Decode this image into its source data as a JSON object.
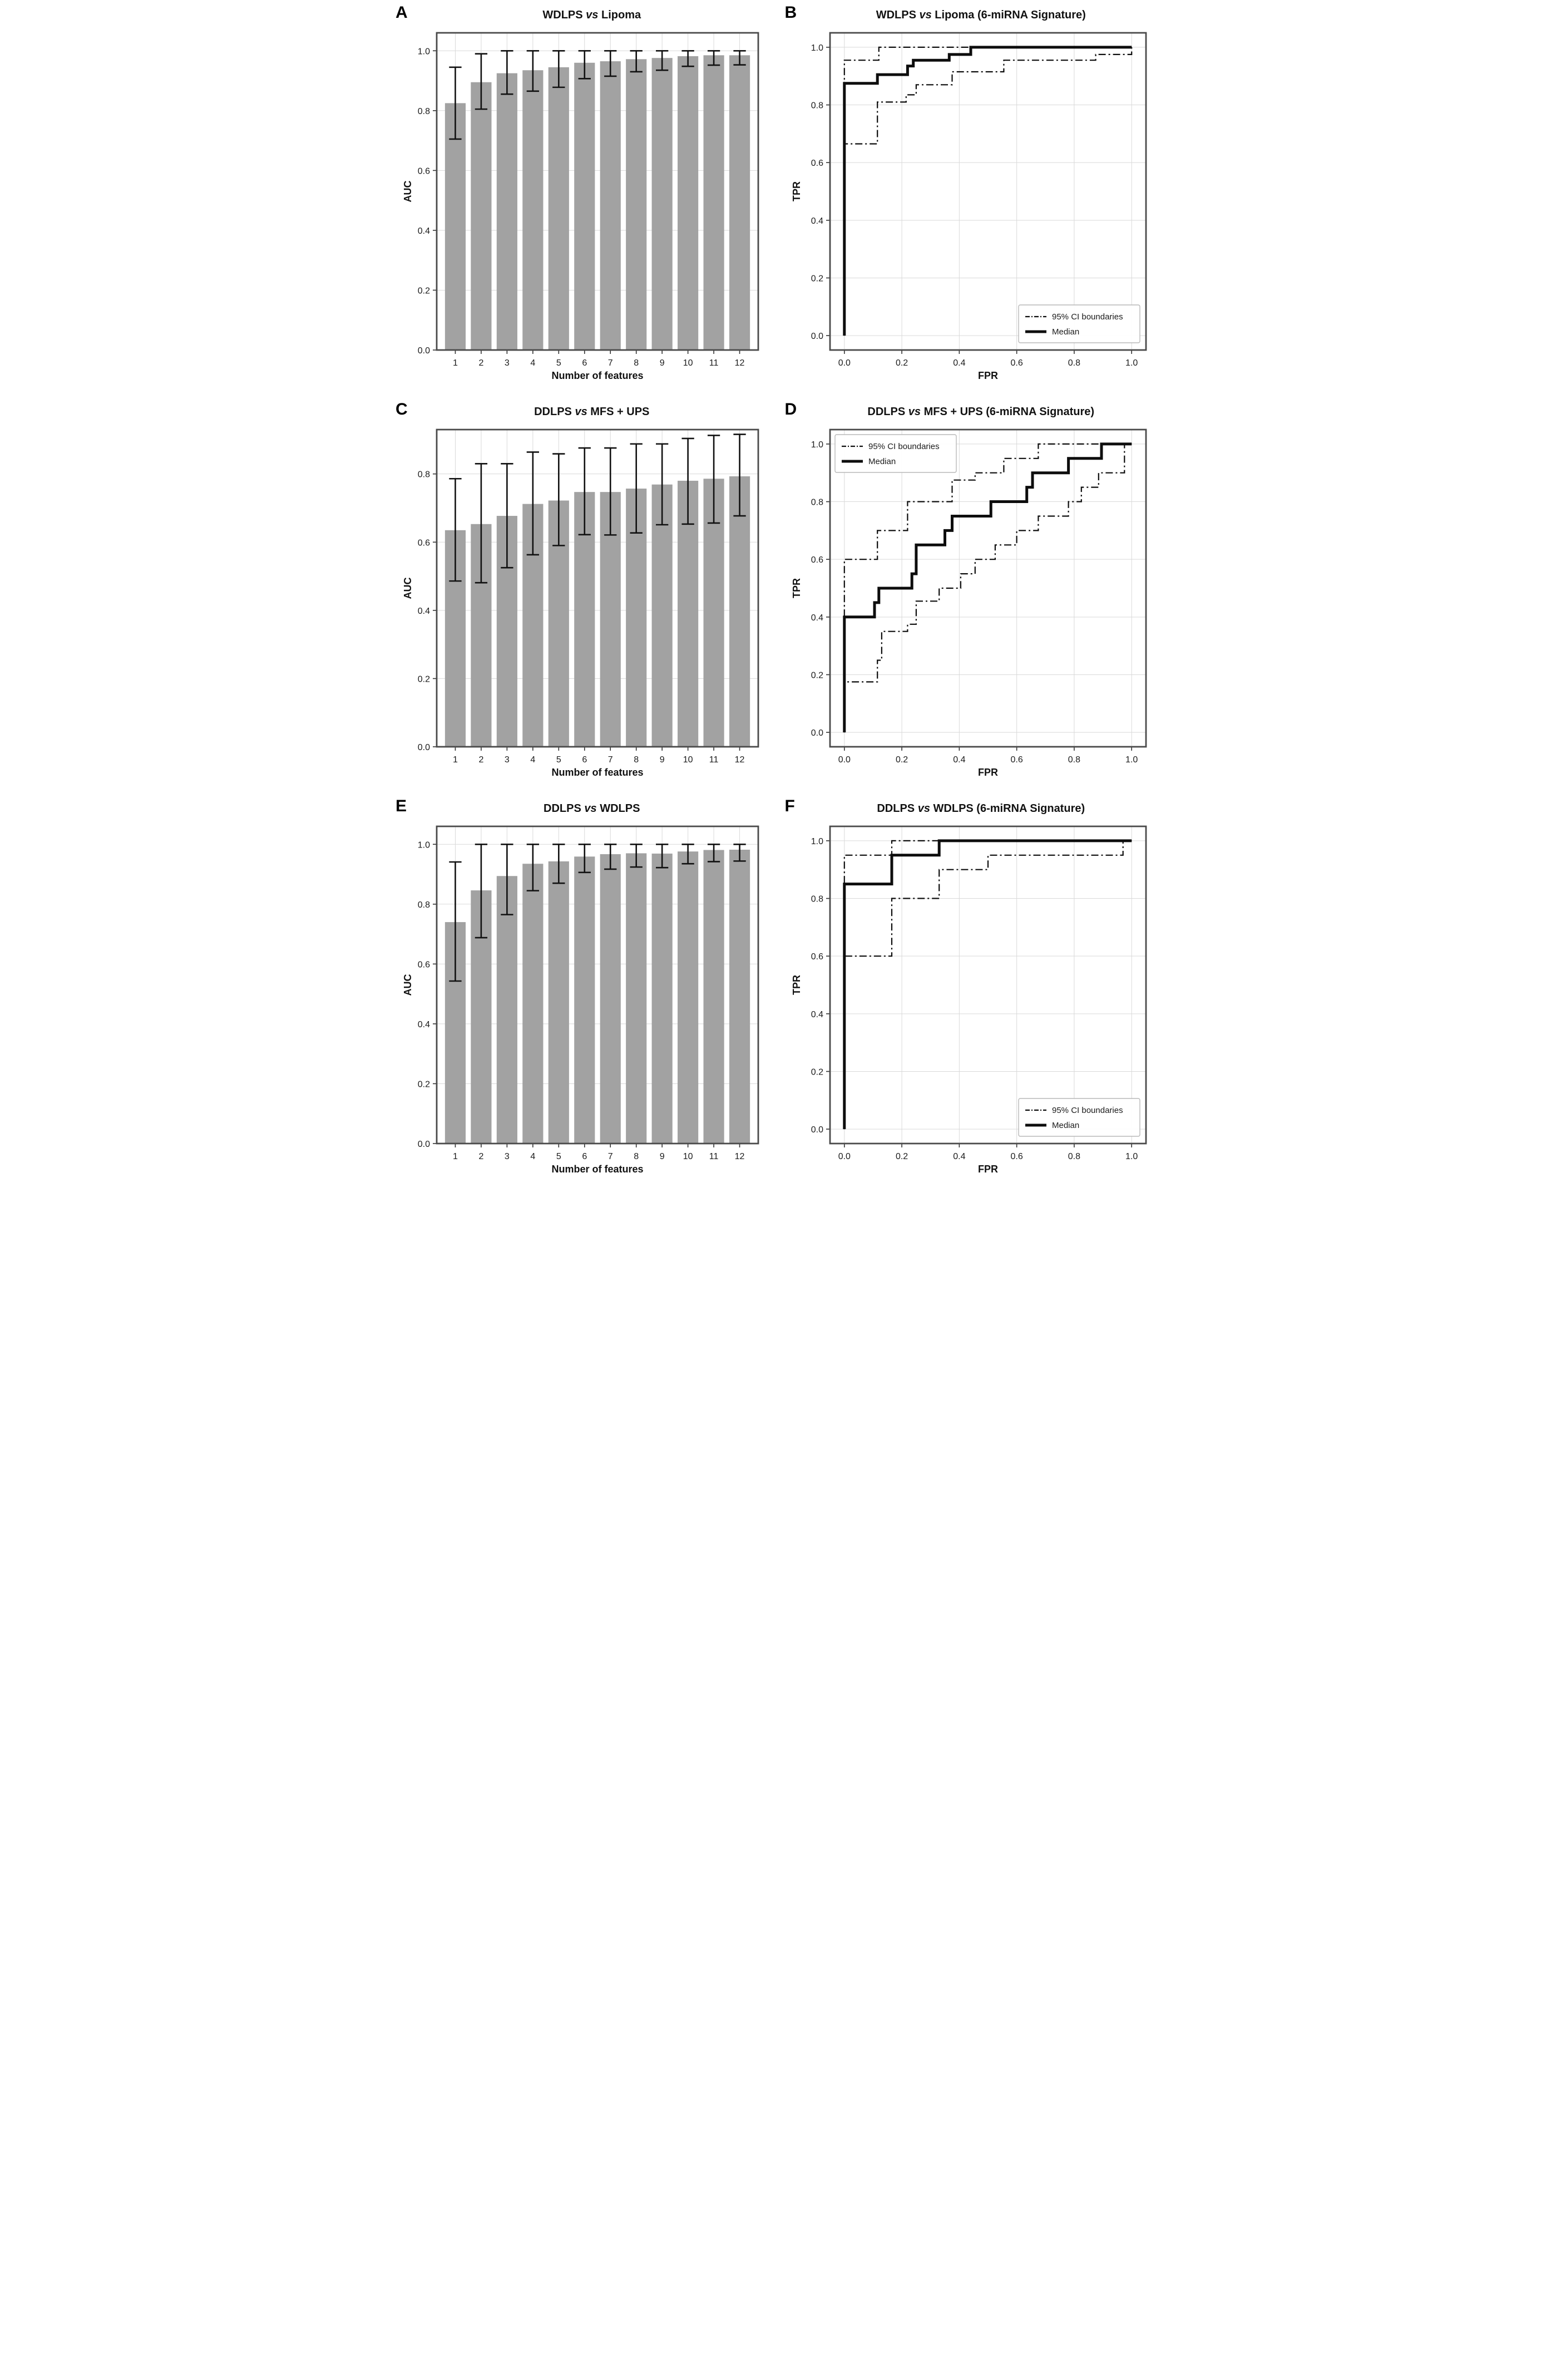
{
  "figure": {
    "background": "#ffffff",
    "text_color": "#111111",
    "bar_color": "#a2a2a2",
    "errorbar_color": "#111111",
    "grid_color": "#d9d9d9",
    "frame_color": "#4a4a4a"
  },
  "chart_data": [
    {
      "panel": "A",
      "type": "bar",
      "title": {
        "pre": "WDLPS",
        "vs": "vs",
        "post": "Lipoma"
      },
      "xlabel": "Number of features",
      "ylabel": "AUC",
      "categories": [
        1,
        2,
        3,
        4,
        5,
        6,
        7,
        8,
        9,
        10,
        11,
        12
      ],
      "values": [
        0.825,
        0.895,
        0.925,
        0.935,
        0.945,
        0.96,
        0.965,
        0.972,
        0.976,
        0.982,
        0.985,
        0.985
      ],
      "ci_low": [
        0.705,
        0.805,
        0.855,
        0.865,
        0.878,
        0.907,
        0.915,
        0.93,
        0.935,
        0.948,
        0.952,
        0.953
      ],
      "ci_high": [
        0.945,
        0.99,
        1.0,
        1.0,
        1.0,
        1.0,
        1.0,
        1.0,
        1.0,
        1.0,
        1.0,
        1.0
      ],
      "yticks": [
        0.0,
        0.2,
        0.4,
        0.6,
        0.8,
        1.0
      ],
      "ylim": [
        0,
        1.06
      ],
      "grid": true
    },
    {
      "panel": "B",
      "type": "roc",
      "title": {
        "pre": "WDLPS",
        "vs": "vs",
        "post": "Lipoma (6-miRNA Signature)"
      },
      "xlabel": "FPR",
      "ylabel": "TPR",
      "xticks": [
        0.0,
        0.2,
        0.4,
        0.6,
        0.8,
        1.0
      ],
      "yticks": [
        0.0,
        0.2,
        0.4,
        0.6,
        0.8,
        1.0
      ],
      "xlim": [
        -0.05,
        1.05
      ],
      "ylim": [
        -0.05,
        1.05
      ],
      "legend": {
        "position": "bottom-right",
        "entries": [
          {
            "label": "95% CI boundaries",
            "style": "dashdot"
          },
          {
            "label": "Median",
            "style": "solid"
          }
        ]
      },
      "series": [
        {
          "name": "Upper 95% CI",
          "style": "dashdot",
          "points": [
            [
              0,
              0
            ],
            [
              0,
              0.955
            ],
            [
              0.12,
              0.955
            ],
            [
              0.12,
              1.0
            ],
            [
              1,
              1
            ]
          ]
        },
        {
          "name": "Lower 95% CI",
          "style": "dashdot",
          "points": [
            [
              0,
              0
            ],
            [
              0,
              0.665
            ],
            [
              0.115,
              0.665
            ],
            [
              0.115,
              0.81
            ],
            [
              0.215,
              0.81
            ],
            [
              0.215,
              0.835
            ],
            [
              0.25,
              0.835
            ],
            [
              0.25,
              0.87
            ],
            [
              0.375,
              0.87
            ],
            [
              0.375,
              0.915
            ],
            [
              0.555,
              0.915
            ],
            [
              0.555,
              0.955
            ],
            [
              0.875,
              0.955
            ],
            [
              0.875,
              0.975
            ],
            [
              1,
              0.975
            ],
            [
              1,
              1
            ]
          ]
        },
        {
          "name": "Median",
          "style": "solid",
          "points": [
            [
              0,
              0
            ],
            [
              0,
              0.875
            ],
            [
              0.115,
              0.875
            ],
            [
              0.115,
              0.905
            ],
            [
              0.22,
              0.905
            ],
            [
              0.22,
              0.935
            ],
            [
              0.24,
              0.935
            ],
            [
              0.24,
              0.955
            ],
            [
              0.365,
              0.955
            ],
            [
              0.365,
              0.975
            ],
            [
              0.44,
              0.975
            ],
            [
              0.44,
              1.0
            ],
            [
              1,
              1
            ]
          ]
        }
      ]
    },
    {
      "panel": "C",
      "type": "bar",
      "title": {
        "pre": "DDLPS",
        "vs": "vs",
        "post": "MFS + UPS"
      },
      "xlabel": "Number of features",
      "ylabel": "AUC",
      "categories": [
        1,
        2,
        3,
        4,
        5,
        6,
        7,
        8,
        9,
        10,
        11,
        12
      ],
      "values": [
        0.635,
        0.653,
        0.677,
        0.712,
        0.722,
        0.747,
        0.747,
        0.757,
        0.769,
        0.78,
        0.786,
        0.793
      ],
      "ci_low": [
        0.486,
        0.481,
        0.525,
        0.563,
        0.59,
        0.622,
        0.621,
        0.627,
        0.651,
        0.653,
        0.656,
        0.677
      ],
      "ci_high": [
        0.786,
        0.83,
        0.83,
        0.864,
        0.859,
        0.876,
        0.876,
        0.888,
        0.888,
        0.904,
        0.913,
        0.916
      ],
      "yticks": [
        0.0,
        0.2,
        0.4,
        0.6,
        0.8
      ],
      "ylim": [
        0,
        0.93
      ],
      "grid": true
    },
    {
      "panel": "D",
      "type": "roc",
      "title": {
        "pre": "DDLPS",
        "vs": "vs",
        "post": "MFS + UPS (6-miRNA Signature)"
      },
      "xlabel": "FPR",
      "ylabel": "TPR",
      "xticks": [
        0.0,
        0.2,
        0.4,
        0.6,
        0.8,
        1.0
      ],
      "yticks": [
        0.0,
        0.2,
        0.4,
        0.6,
        0.8,
        1.0
      ],
      "xlim": [
        -0.05,
        1.05
      ],
      "ylim": [
        -0.05,
        1.05
      ],
      "legend": {
        "position": "top-left",
        "entries": [
          {
            "label": "95% CI boundaries",
            "style": "dashdot"
          },
          {
            "label": "Median",
            "style": "solid"
          }
        ]
      },
      "series": [
        {
          "name": "Upper 95% CI",
          "style": "dashdot",
          "points": [
            [
              0,
              0
            ],
            [
              0,
              0.6
            ],
            [
              0.115,
              0.6
            ],
            [
              0.115,
              0.7
            ],
            [
              0.22,
              0.7
            ],
            [
              0.22,
              0.8
            ],
            [
              0.375,
              0.8
            ],
            [
              0.375,
              0.875
            ],
            [
              0.455,
              0.875
            ],
            [
              0.455,
              0.9
            ],
            [
              0.555,
              0.9
            ],
            [
              0.555,
              0.95
            ],
            [
              0.675,
              0.95
            ],
            [
              0.675,
              1.0
            ],
            [
              1,
              1
            ]
          ]
        },
        {
          "name": "Lower 95% CI",
          "style": "dashdot",
          "points": [
            [
              0,
              0
            ],
            [
              0,
              0.175
            ],
            [
              0.115,
              0.175
            ],
            [
              0.115,
              0.25
            ],
            [
              0.13,
              0.25
            ],
            [
              0.13,
              0.35
            ],
            [
              0.22,
              0.35
            ],
            [
              0.22,
              0.375
            ],
            [
              0.25,
              0.375
            ],
            [
              0.25,
              0.455
            ],
            [
              0.33,
              0.455
            ],
            [
              0.33,
              0.5
            ],
            [
              0.405,
              0.5
            ],
            [
              0.405,
              0.55
            ],
            [
              0.455,
              0.55
            ],
            [
              0.455,
              0.6
            ],
            [
              0.525,
              0.6
            ],
            [
              0.525,
              0.65
            ],
            [
              0.6,
              0.65
            ],
            [
              0.6,
              0.7
            ],
            [
              0.675,
              0.7
            ],
            [
              0.675,
              0.75
            ],
            [
              0.78,
              0.75
            ],
            [
              0.78,
              0.8
            ],
            [
              0.825,
              0.8
            ],
            [
              0.825,
              0.85
            ],
            [
              0.885,
              0.85
            ],
            [
              0.885,
              0.9
            ],
            [
              0.975,
              0.9
            ],
            [
              0.975,
              1.0
            ],
            [
              1,
              1
            ]
          ]
        },
        {
          "name": "Median",
          "style": "solid",
          "points": [
            [
              0,
              0
            ],
            [
              0,
              0.4
            ],
            [
              0.105,
              0.4
            ],
            [
              0.105,
              0.45
            ],
            [
              0.12,
              0.45
            ],
            [
              0.12,
              0.5
            ],
            [
              0.235,
              0.5
            ],
            [
              0.235,
              0.55
            ],
            [
              0.25,
              0.55
            ],
            [
              0.25,
              0.65
            ],
            [
              0.35,
              0.65
            ],
            [
              0.35,
              0.7
            ],
            [
              0.375,
              0.7
            ],
            [
              0.375,
              0.75
            ],
            [
              0.51,
              0.75
            ],
            [
              0.51,
              0.8
            ],
            [
              0.635,
              0.8
            ],
            [
              0.635,
              0.85
            ],
            [
              0.655,
              0.85
            ],
            [
              0.655,
              0.9
            ],
            [
              0.78,
              0.9
            ],
            [
              0.78,
              0.95
            ],
            [
              0.895,
              0.95
            ],
            [
              0.895,
              1.0
            ],
            [
              1,
              1
            ]
          ]
        }
      ]
    },
    {
      "panel": "E",
      "type": "bar",
      "title": {
        "pre": "DDLPS",
        "vs": "vs",
        "post": "WDLPS"
      },
      "xlabel": "Number of features",
      "ylabel": "AUC",
      "categories": [
        1,
        2,
        3,
        4,
        5,
        6,
        7,
        8,
        9,
        10,
        11,
        12
      ],
      "values": [
        0.74,
        0.846,
        0.894,
        0.935,
        0.943,
        0.959,
        0.967,
        0.97,
        0.969,
        0.976,
        0.981,
        0.982
      ],
      "ci_low": [
        0.543,
        0.688,
        0.765,
        0.845,
        0.87,
        0.906,
        0.917,
        0.924,
        0.922,
        0.935,
        0.942,
        0.944
      ],
      "ci_high": [
        0.941,
        1.0,
        1.0,
        1.0,
        1.0,
        1.0,
        1.0,
        1.0,
        1.0,
        1.0,
        1.0,
        1.0
      ],
      "yticks": [
        0.0,
        0.2,
        0.4,
        0.6,
        0.8,
        1.0
      ],
      "ylim": [
        0,
        1.06
      ],
      "grid": true
    },
    {
      "panel": "F",
      "type": "roc",
      "title": {
        "pre": "DDLPS",
        "vs": "vs",
        "post": "WDLPS (6-miRNA Signature)"
      },
      "xlabel": "FPR",
      "ylabel": "TPR",
      "xticks": [
        0.0,
        0.2,
        0.4,
        0.6,
        0.8,
        1.0
      ],
      "yticks": [
        0.0,
        0.2,
        0.4,
        0.6,
        0.8,
        1.0
      ],
      "xlim": [
        -0.05,
        1.05
      ],
      "ylim": [
        -0.05,
        1.05
      ],
      "legend": {
        "position": "bottom-right",
        "entries": [
          {
            "label": "95% CI boundaries",
            "style": "dashdot"
          },
          {
            "label": "Median",
            "style": "solid"
          }
        ]
      },
      "series": [
        {
          "name": "Upper 95% CI",
          "style": "dashdot",
          "points": [
            [
              0,
              0
            ],
            [
              0,
              0.95
            ],
            [
              0.165,
              0.95
            ],
            [
              0.165,
              1.0
            ],
            [
              1,
              1
            ]
          ]
        },
        {
          "name": "Lower 95% CI",
          "style": "dashdot",
          "points": [
            [
              0,
              0
            ],
            [
              0,
              0.6
            ],
            [
              0.165,
              0.6
            ],
            [
              0.165,
              0.8
            ],
            [
              0.33,
              0.8
            ],
            [
              0.33,
              0.9
            ],
            [
              0.5,
              0.9
            ],
            [
              0.5,
              0.95
            ],
            [
              0.97,
              0.95
            ],
            [
              0.97,
              1.0
            ],
            [
              1,
              1
            ]
          ]
        },
        {
          "name": "Median",
          "style": "solid",
          "points": [
            [
              0,
              0
            ],
            [
              0,
              0.85
            ],
            [
              0.165,
              0.85
            ],
            [
              0.165,
              0.95
            ],
            [
              0.33,
              0.95
            ],
            [
              0.33,
              1.0
            ],
            [
              1,
              1
            ]
          ]
        }
      ]
    }
  ]
}
